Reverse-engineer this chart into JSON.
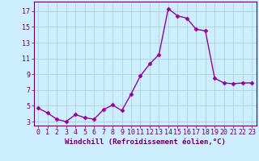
{
  "x": [
    0,
    1,
    2,
    3,
    4,
    5,
    6,
    7,
    8,
    9,
    10,
    11,
    12,
    13,
    14,
    15,
    16,
    17,
    18,
    19,
    20,
    21,
    22,
    23
  ],
  "y": [
    4.7,
    4.1,
    3.3,
    3.0,
    3.9,
    3.5,
    3.3,
    4.5,
    5.1,
    4.4,
    6.5,
    8.8,
    10.3,
    11.5,
    17.3,
    16.4,
    16.1,
    14.7,
    14.5,
    8.5,
    7.9,
    7.8,
    7.9,
    7.9
  ],
  "line_color": "#990099",
  "marker": "D",
  "markersize": 2.5,
  "linewidth": 1.0,
  "xlabel": "Windchill (Refroidissement éolien,°C)",
  "ylabel": "",
  "xlim": [
    -0.5,
    23.5
  ],
  "ylim": [
    2.5,
    18.2
  ],
  "yticks": [
    3,
    5,
    7,
    9,
    11,
    13,
    15,
    17
  ],
  "xticks": [
    0,
    1,
    2,
    3,
    4,
    5,
    6,
    7,
    8,
    9,
    10,
    11,
    12,
    13,
    14,
    15,
    16,
    17,
    18,
    19,
    20,
    21,
    22,
    23
  ],
  "bg_color": "#cceeff",
  "grid_color": "#aacccc",
  "text_color": "#660066",
  "tick_color": "#660066",
  "label_fontsize": 6.5,
  "tick_fontsize": 6.0
}
